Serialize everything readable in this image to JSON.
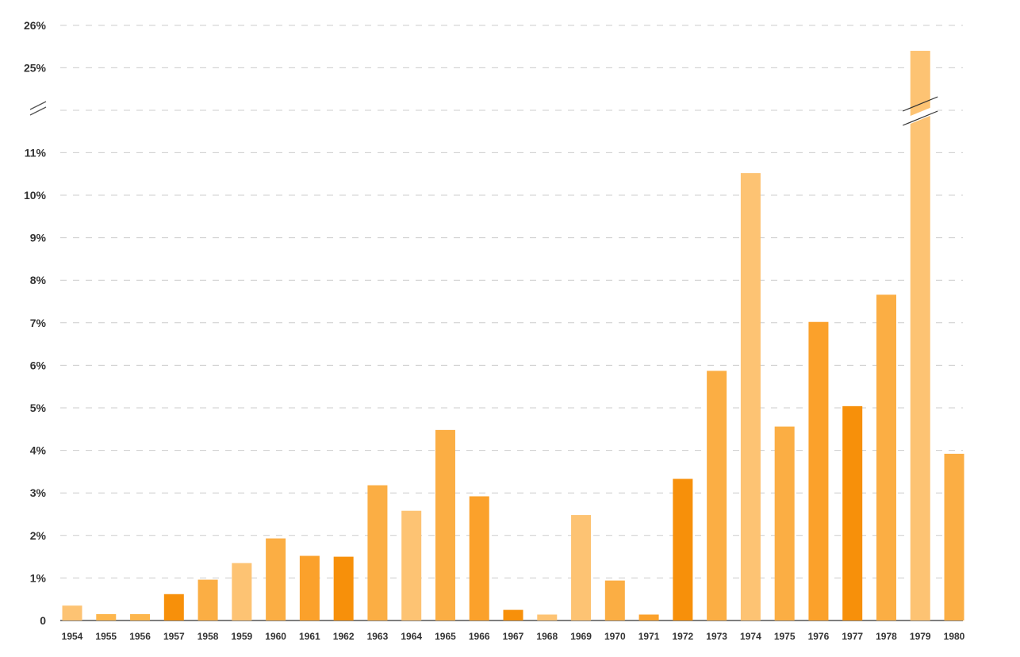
{
  "chart_data": {
    "type": "bar",
    "title": "",
    "xlabel": "",
    "ylabel": "",
    "y_axis_broken": true,
    "ylim": [
      0,
      26
    ],
    "grid": "horizontal dashed",
    "y_ticks": [
      "0",
      "1%",
      "2%",
      "3%",
      "4%",
      "5%",
      "6%",
      "7%",
      "8%",
      "9%",
      "10%",
      "11%",
      "25%",
      "26%"
    ],
    "categories": [
      "1954",
      "1955",
      "1956",
      "1957",
      "1958",
      "1959",
      "1960",
      "1961",
      "1962",
      "1963",
      "1964",
      "1965",
      "1966",
      "1967",
      "1968",
      "1969",
      "1970",
      "1971",
      "1972",
      "1973",
      "1974",
      "1975",
      "1976",
      "1977",
      "1978",
      "1979",
      "1980"
    ],
    "values": [
      0.35,
      0.15,
      0.15,
      0.62,
      0.96,
      1.35,
      1.93,
      1.52,
      1.5,
      3.18,
      2.58,
      4.48,
      2.92,
      0.25,
      0.14,
      2.48,
      0.94,
      0.14,
      3.33,
      5.87,
      10.52,
      4.56,
      7.02,
      5.04,
      7.66,
      25.4,
      3.92
    ],
    "colors": [
      "#FDC373",
      "#FDB64D",
      "#FDB64D",
      "#F7900A",
      "#FBAE44",
      "#FDC373",
      "#FBAE44",
      "#FBA12B",
      "#F7900A",
      "#FBAE44",
      "#FDC373",
      "#FBAE44",
      "#FBA12B",
      "#F7900A",
      "#FDC373",
      "#FDC373",
      "#FBAE44",
      "#FBA12B",
      "#F7900A",
      "#FBAE44",
      "#FDC373",
      "#FBAE44",
      "#FBA12B",
      "#F7900A",
      "#FBAE44",
      "#FDC373",
      "#FBAE44"
    ]
  }
}
